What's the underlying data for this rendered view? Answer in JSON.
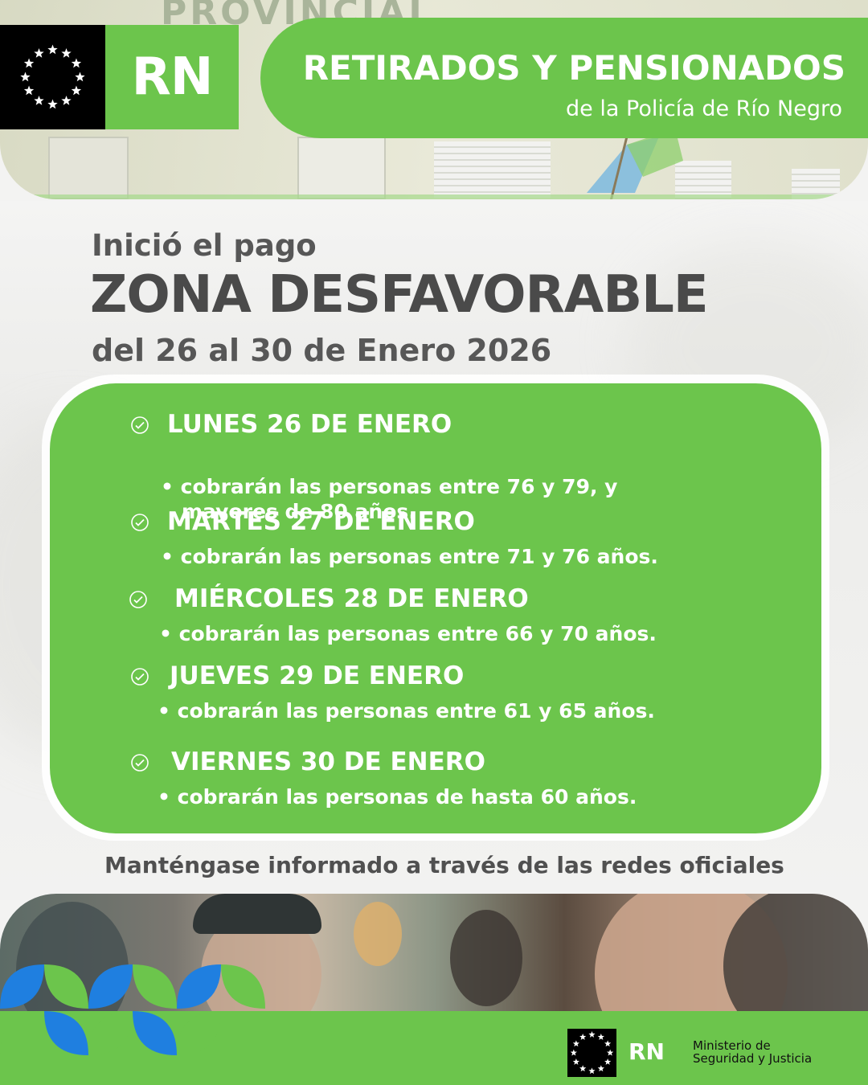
{
  "header": {
    "sign_text": "PROVINCIAL",
    "rn_label": "RN",
    "title": "RETIRADOS Y PENSIONADOS",
    "subtitle": "de la Policía de Río Negro"
  },
  "intro": {
    "line1": "Inició el pago",
    "line2": "ZONA DESFAVORABLE",
    "line3": "del 26 al 30 de Enero 2026"
  },
  "schedule": [
    {
      "day": "LUNES 26 DE ENERO",
      "lines": [
        "• cobrarán las personas entre 76 y 79, y",
        "mayores de 80 años."
      ]
    },
    {
      "day": "MARTES 27 DE ENERO",
      "lines": [
        "• cobrarán las personas entre 71 y 76 años."
      ]
    },
    {
      "day": "MIÉRCOLES 28 DE ENERO",
      "lines": [
        "• cobrarán las personas entre 66 y 70 años."
      ]
    },
    {
      "day": "JUEVES 29 DE ENERO",
      "lines": [
        "• cobrarán las personas entre 61 y 65 años."
      ]
    },
    {
      "day": "VIERNES 30 DE ENERO",
      "lines": [
        "• cobrarán las personas de hasta 60 años."
      ]
    }
  ],
  "footer": {
    "note": "Manténgase informado a través  de las redes oficiales",
    "rn_label": "RN",
    "ministry_line1": "Ministerio de",
    "ministry_line2": "Seguridad y Justicia"
  },
  "colors": {
    "brand_green": "#6cc54c",
    "leaf_blue": "#1f7fe0",
    "text_dark": "#4a4a4a"
  },
  "icons": [
    "eu-stars-logo-icon",
    "check-circle-icon",
    "leaf-pattern-icon"
  ]
}
